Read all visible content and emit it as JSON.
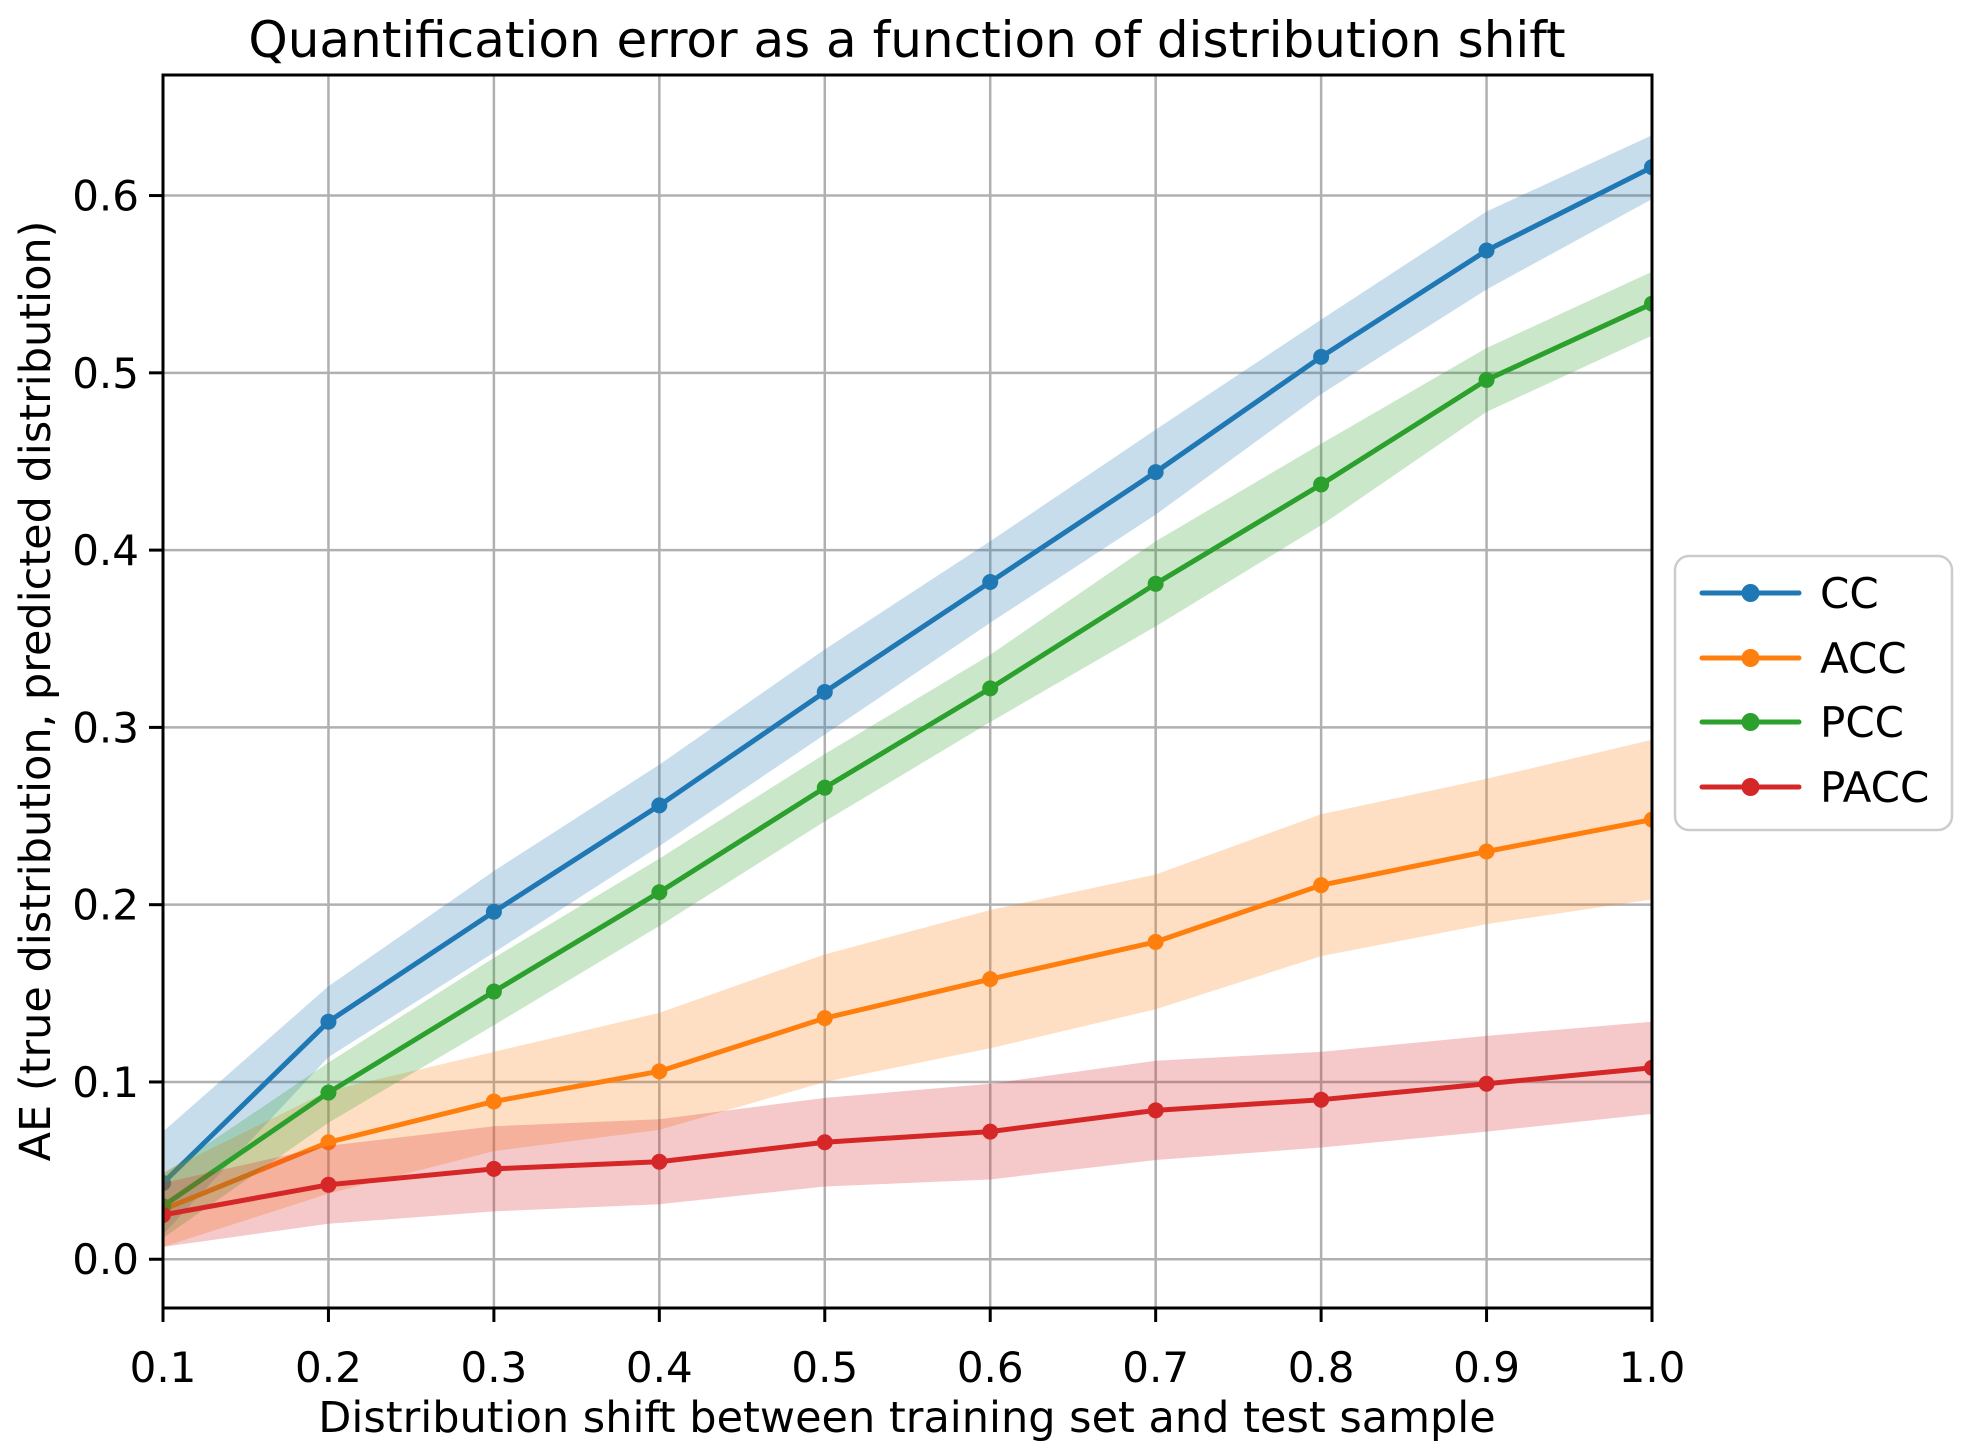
{
  "chart_data": {
    "type": "line",
    "title": "Quantification error as a function of distribution shift",
    "xlabel": "Distribution shift between training set and test sample",
    "ylabel": "AE (true distribution, predicted distribution)",
    "x": [
      0.1,
      0.2,
      0.3,
      0.4,
      0.5,
      0.6,
      0.7,
      0.8,
      0.9,
      1.0
    ],
    "x_tick_labels": [
      "0.1",
      "0.2",
      "0.3",
      "0.4",
      "0.5",
      "0.6",
      "0.7",
      "0.8",
      "0.9",
      "1.0"
    ],
    "y_ticks": [
      0.0,
      0.1,
      0.2,
      0.3,
      0.4,
      0.5,
      0.6
    ],
    "y_tick_labels": [
      "0.0",
      "0.1",
      "0.2",
      "0.3",
      "0.4",
      "0.5",
      "0.6"
    ],
    "xlim": [
      0.1,
      1.0
    ],
    "ylim": [
      -0.0275,
      0.668
    ],
    "grid": true,
    "grid_color": "#b0b0b0",
    "background_color": "#ffffff",
    "spine_color": "#000000",
    "band_alpha": 0.25,
    "legend_position": "outside-right",
    "series": [
      {
        "name": "CC",
        "color": "#1f77b4",
        "values": [
          0.043,
          0.134,
          0.196,
          0.256,
          0.32,
          0.382,
          0.444,
          0.509,
          0.569,
          0.616
        ],
        "band_halfwidth": [
          0.029,
          0.02,
          0.023,
          0.023,
          0.024,
          0.023,
          0.024,
          0.021,
          0.022,
          0.018
        ]
      },
      {
        "name": "ACC",
        "color": "#ff7f0e",
        "values": [
          0.028,
          0.066,
          0.089,
          0.106,
          0.136,
          0.158,
          0.179,
          0.211,
          0.23,
          0.248
        ],
        "band_halfwidth": [
          0.021,
          0.029,
          0.028,
          0.033,
          0.036,
          0.039,
          0.038,
          0.04,
          0.041,
          0.045
        ]
      },
      {
        "name": "PCC",
        "color": "#2ca02c",
        "values": [
          0.03,
          0.094,
          0.151,
          0.207,
          0.266,
          0.322,
          0.381,
          0.437,
          0.496,
          0.539
        ],
        "band_halfwidth": [
          0.018,
          0.017,
          0.019,
          0.019,
          0.019,
          0.019,
          0.024,
          0.023,
          0.018,
          0.018
        ]
      },
      {
        "name": "PACC",
        "color": "#d62728",
        "values": [
          0.025,
          0.042,
          0.051,
          0.055,
          0.066,
          0.072,
          0.084,
          0.09,
          0.099,
          0.108
        ],
        "band_halfwidth": [
          0.018,
          0.022,
          0.024,
          0.024,
          0.025,
          0.027,
          0.028,
          0.027,
          0.027,
          0.026
        ]
      }
    ]
  }
}
